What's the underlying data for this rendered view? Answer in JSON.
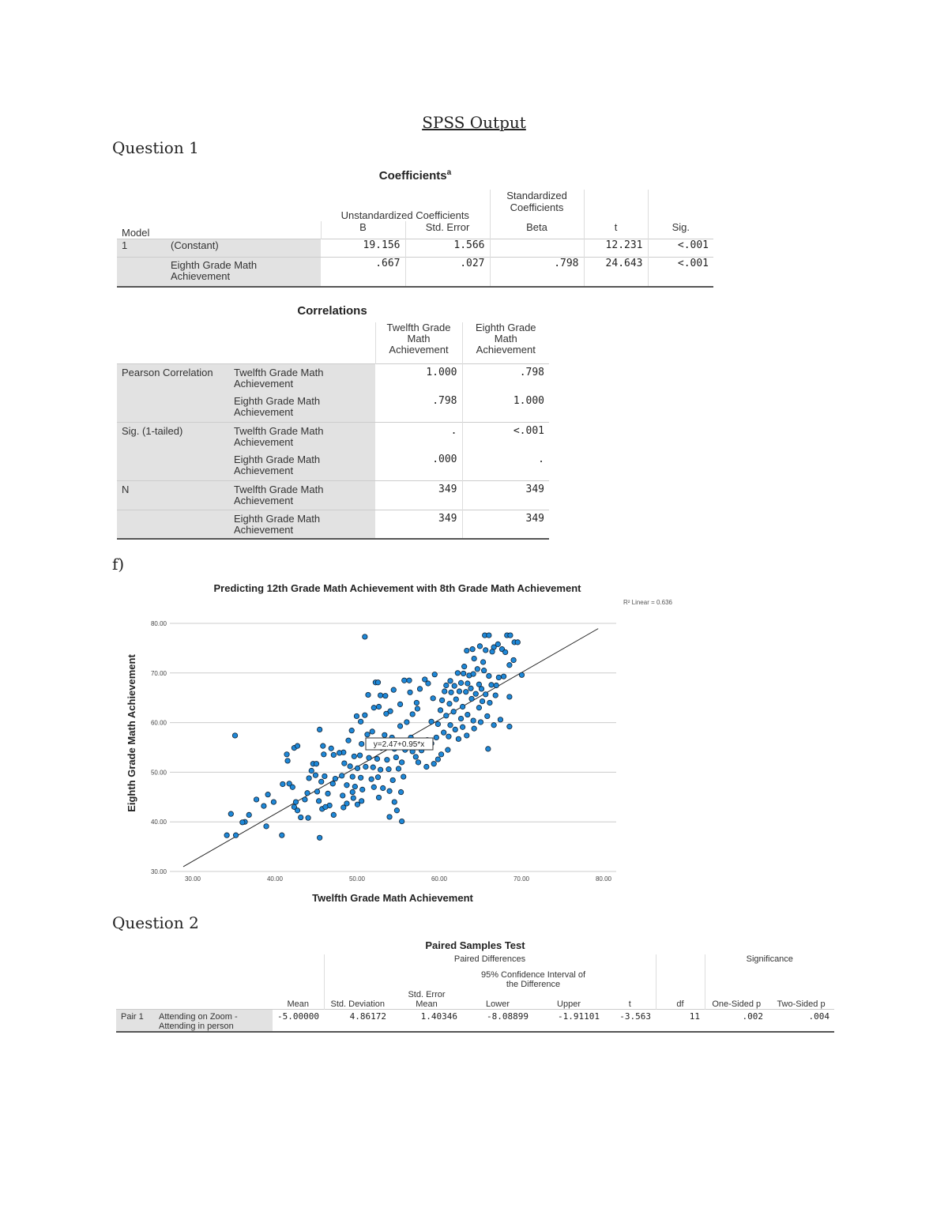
{
  "title": "SPSS Output",
  "question1": "Question 1",
  "question2": "Question 2",
  "part_f": "f)",
  "coefficients": {
    "title": "Coefficients",
    "title_sup": "a",
    "headers": {
      "unstandardized": "Unstandardized Coefficients",
      "standardized": "Standardized Coefficients",
      "model": "Model",
      "b": "B",
      "std_error": "Std. Error",
      "beta": "Beta",
      "t": "t",
      "sig": "Sig."
    },
    "rows": [
      {
        "model": "1",
        "label": "(Constant)",
        "b": "19.156",
        "se": "1.566",
        "beta": "",
        "t": "12.231",
        "sig": "<.001"
      },
      {
        "model": "",
        "label": "Eighth Grade Math Achievement",
        "b": ".667",
        "se": ".027",
        "beta": ".798",
        "t": "24.643",
        "sig": "<.001"
      }
    ]
  },
  "correlations": {
    "title": "Correlations",
    "col_headers": [
      "Twelfth Grade Math Achievement",
      "Eighth Grade Math Achievement"
    ],
    "rows": [
      {
        "group": "Pearson Correlation",
        "label": "Twelfth Grade Math Achievement",
        "v1": "1.000",
        "v2": ".798"
      },
      {
        "group": "",
        "label": "Eighth Grade Math Achievement",
        "v1": ".798",
        "v2": "1.000"
      },
      {
        "group": "Sig. (1-tailed)",
        "label": "Twelfth Grade Math Achievement",
        "v1": ".",
        "v2": "<.001"
      },
      {
        "group": "",
        "label": "Eighth Grade Math Achievement",
        "v1": ".000",
        "v2": "."
      },
      {
        "group": "N",
        "label": "Twelfth Grade Math Achievement",
        "v1": "349",
        "v2": "349"
      },
      {
        "group": "",
        "label": "Eighth Grade Math Achievement",
        "v1": "349",
        "v2": "349"
      }
    ]
  },
  "chart_data": {
    "type": "scatter",
    "title": "Predicting 12th Grade Math Achievement with 8th Grade Math Achievement",
    "xlabel": "Twelfth Grade Math Achievement",
    "ylabel": "Eighth Grade Math Achievement",
    "xlim": [
      30,
      80
    ],
    "ylim": [
      30,
      80
    ],
    "xticks": [
      "30.00",
      "40.00",
      "50.00",
      "60.00",
      "70.00",
      "80.00"
    ],
    "yticks": [
      "30.00",
      "40.00",
      "50.00",
      "60.00",
      "70.00",
      "80.00"
    ],
    "grid": "horizontal",
    "fit_line": {
      "intercept": 2.47,
      "slope": 0.95,
      "label": "y=2.47+0.95*x"
    },
    "r2_label": "R² Linear = 0.636",
    "point_color": "#1e88d8",
    "points": [
      [
        66.7,
        77.6
      ],
      [
        67.2,
        77.6
      ],
      [
        69.4,
        77.6
      ],
      [
        69.8,
        77.6
      ],
      [
        70.3,
        76.2
      ],
      [
        70.7,
        76.2
      ],
      [
        68.3,
        75.8
      ],
      [
        67.8,
        75.2
      ],
      [
        66.1,
        75.4
      ],
      [
        64.5,
        74.5
      ],
      [
        65.2,
        74.8
      ],
      [
        66.8,
        74.6
      ],
      [
        67.6,
        74.3
      ],
      [
        68.8,
        74.8
      ],
      [
        69.2,
        74.2
      ],
      [
        65.4,
        72.9
      ],
      [
        66.5,
        72.2
      ],
      [
        70.2,
        72.6
      ],
      [
        69.7,
        71.6
      ],
      [
        64.2,
        71.3
      ],
      [
        65.8,
        70.8
      ],
      [
        66.6,
        70.5
      ],
      [
        63.4,
        70.0
      ],
      [
        64.1,
        69.9
      ],
      [
        64.8,
        69.5
      ],
      [
        65.3,
        69.8
      ],
      [
        67.2,
        69.4
      ],
      [
        68.4,
        69.1
      ],
      [
        69.0,
        69.3
      ],
      [
        71.2,
        69.6
      ],
      [
        60.6,
        69.7
      ],
      [
        62.5,
        68.4
      ],
      [
        63.8,
        68.0
      ],
      [
        64.6,
        67.9
      ],
      [
        66.0,
        67.7
      ],
      [
        67.5,
        67.6
      ],
      [
        59.4,
        68.7
      ],
      [
        59.8,
        67.9
      ],
      [
        62.0,
        67.5
      ],
      [
        63.0,
        67.4
      ],
      [
        65.0,
        66.9
      ],
      [
        66.3,
        66.8
      ],
      [
        68.1,
        67.5
      ],
      [
        61.8,
        66.3
      ],
      [
        62.6,
        66.1
      ],
      [
        63.6,
        66.3
      ],
      [
        64.4,
        66.2
      ],
      [
        65.6,
        65.8
      ],
      [
        66.8,
        65.7
      ],
      [
        68.0,
        65.5
      ],
      [
        69.7,
        65.2
      ],
      [
        60.4,
        64.9
      ],
      [
        61.5,
        64.5
      ],
      [
        63.2,
        64.7
      ],
      [
        65.1,
        64.8
      ],
      [
        66.4,
        64.3
      ],
      [
        67.3,
        64.0
      ],
      [
        62.4,
        63.8
      ],
      [
        64.0,
        63.2
      ],
      [
        66.0,
        63.0
      ],
      [
        61.3,
        62.5
      ],
      [
        62.9,
        62.2
      ],
      [
        64.6,
        61.6
      ],
      [
        67.0,
        61.3
      ],
      [
        68.6,
        60.6
      ],
      [
        69.7,
        59.2
      ],
      [
        62.0,
        61.4
      ],
      [
        63.8,
        60.8
      ],
      [
        65.3,
        60.4
      ],
      [
        66.2,
        60.1
      ],
      [
        67.8,
        59.5
      ],
      [
        60.2,
        60.2
      ],
      [
        61.0,
        59.7
      ],
      [
        62.5,
        59.5
      ],
      [
        64.0,
        59.1
      ],
      [
        65.4,
        58.8
      ],
      [
        63.1,
        58.6
      ],
      [
        61.7,
        58.0
      ],
      [
        64.5,
        57.4
      ],
      [
        62.3,
        57.2
      ],
      [
        60.8,
        57.0
      ],
      [
        63.5,
        56.7
      ],
      [
        67.1,
        54.7
      ],
      [
        62.2,
        54.5
      ],
      [
        61.4,
        53.6
      ],
      [
        61.0,
        52.6
      ],
      [
        60.5,
        51.7
      ],
      [
        59.6,
        51.1
      ],
      [
        58.6,
        52.0
      ],
      [
        57.9,
        54.2
      ],
      [
        59.0,
        54.4
      ],
      [
        58.3,
        53.1
      ],
      [
        60.2,
        55.8
      ],
      [
        59.7,
        56.5
      ],
      [
        57.7,
        57.0
      ],
      [
        56.4,
        59.3
      ],
      [
        57.2,
        60.1
      ],
      [
        57.9,
        61.7
      ],
      [
        58.5,
        62.8
      ],
      [
        58.4,
        64.0
      ],
      [
        57.6,
        66.1
      ],
      [
        58.8,
        66.8
      ],
      [
        56.9,
        68.5
      ],
      [
        57.5,
        68.5
      ],
      [
        55.6,
        66.6
      ],
      [
        56.4,
        63.7
      ],
      [
        55.2,
        62.3
      ],
      [
        54.7,
        61.8
      ],
      [
        53.4,
        68.1
      ],
      [
        53.7,
        68.1
      ],
      [
        54.0,
        65.5
      ],
      [
        54.6,
        65.4
      ],
      [
        52.5,
        65.6
      ],
      [
        53.2,
        63.0
      ],
      [
        53.8,
        63.2
      ],
      [
        50.5,
        58.4
      ],
      [
        51.1,
        61.3
      ],
      [
        52.1,
        61.5
      ],
      [
        51.6,
        60.2
      ],
      [
        52.4,
        57.6
      ],
      [
        53.0,
        58.2
      ],
      [
        54.5,
        57.5
      ],
      [
        55.4,
        57.0
      ],
      [
        56.2,
        56.2
      ],
      [
        56.9,
        55.6
      ],
      [
        50.1,
        56.4
      ],
      [
        51.7,
        55.7
      ],
      [
        53.3,
        55.0
      ],
      [
        54.1,
        54.9
      ],
      [
        55.7,
        54.7
      ],
      [
        57.0,
        54.5
      ],
      [
        49.5,
        54.0
      ],
      [
        48.0,
        54.8
      ],
      [
        49.0,
        53.9
      ],
      [
        50.8,
        53.2
      ],
      [
        51.5,
        53.4
      ],
      [
        52.6,
        52.9
      ],
      [
        53.6,
        52.7
      ],
      [
        54.8,
        52.5
      ],
      [
        55.9,
        53.0
      ],
      [
        56.6,
        52.0
      ],
      [
        48.3,
        53.5
      ],
      [
        47.0,
        55.3
      ],
      [
        49.6,
        51.8
      ],
      [
        50.3,
        51.2
      ],
      [
        51.2,
        50.8
      ],
      [
        52.2,
        51.1
      ],
      [
        53.1,
        51.0
      ],
      [
        54.0,
        50.5
      ],
      [
        55.0,
        50.6
      ],
      [
        56.2,
        50.7
      ],
      [
        45.6,
        50.3
      ],
      [
        47.2,
        49.2
      ],
      [
        48.5,
        48.7
      ],
      [
        49.3,
        49.3
      ],
      [
        50.6,
        49.1
      ],
      [
        51.6,
        48.9
      ],
      [
        52.9,
        48.6
      ],
      [
        53.7,
        49.0
      ],
      [
        55.5,
        48.4
      ],
      [
        56.8,
        49.1
      ],
      [
        45.3,
        48.8
      ],
      [
        46.8,
        48.1
      ],
      [
        48.2,
        47.7
      ],
      [
        49.9,
        47.4
      ],
      [
        50.9,
        47.1
      ],
      [
        51.8,
        46.5
      ],
      [
        53.2,
        47.0
      ],
      [
        54.3,
        46.8
      ],
      [
        55.1,
        46.2
      ],
      [
        56.5,
        46.0
      ],
      [
        45.1,
        45.8
      ],
      [
        46.3,
        46.1
      ],
      [
        47.6,
        45.7
      ],
      [
        49.4,
        45.3
      ],
      [
        50.7,
        44.8
      ],
      [
        51.7,
        44.2
      ],
      [
        53.8,
        44.9
      ],
      [
        55.7,
        44.0
      ],
      [
        46.5,
        44.2
      ],
      [
        47.8,
        43.3
      ],
      [
        49.5,
        42.9
      ],
      [
        51.2,
        43.5
      ],
      [
        46.9,
        42.6
      ],
      [
        47.3,
        43.0
      ],
      [
        36.3,
        57.4
      ],
      [
        52.1,
        77.3
      ],
      [
        35.8,
        41.6
      ],
      [
        35.3,
        37.3
      ],
      [
        36.4,
        37.3
      ],
      [
        37.5,
        40.0
      ],
      [
        37.2,
        39.9
      ],
      [
        38.0,
        41.4
      ],
      [
        38.9,
        44.5
      ],
      [
        40.3,
        45.5
      ],
      [
        39.8,
        43.2
      ],
      [
        40.1,
        39.1
      ],
      [
        41.0,
        44.0
      ],
      [
        42.0,
        37.3
      ],
      [
        42.1,
        47.6
      ],
      [
        42.6,
        53.6
      ],
      [
        42.7,
        52.3
      ],
      [
        42.9,
        47.7
      ],
      [
        43.3,
        47.0
      ],
      [
        43.5,
        43.0
      ],
      [
        43.5,
        54.9
      ],
      [
        43.9,
        55.3
      ],
      [
        43.9,
        42.3
      ],
      [
        43.7,
        44.0
      ],
      [
        44.3,
        40.9
      ],
      [
        44.8,
        44.5
      ],
      [
        45.2,
        40.8
      ],
      [
        45.8,
        51.7
      ],
      [
        46.2,
        51.7
      ],
      [
        46.1,
        49.4
      ],
      [
        46.6,
        58.6
      ],
      [
        47.1,
        53.6
      ],
      [
        46.6,
        36.8
      ],
      [
        48.3,
        41.4
      ],
      [
        49.9,
        43.7
      ],
      [
        55.1,
        41.0
      ],
      [
        56.0,
        42.3
      ],
      [
        56.6,
        40.1
      ],
      [
        50.6,
        46.0
      ]
    ]
  },
  "paired": {
    "title": "Paired Samples Test",
    "headers": {
      "paired_differences": "Paired Differences",
      "significance": "Significance",
      "ci": "95% Confidence Interval of the Difference",
      "mean": "Mean",
      "std_dev": "Std. Deviation",
      "sem": "Std. Error Mean",
      "lower": "Lower",
      "upper": "Upper",
      "t": "t",
      "df": "df",
      "one_sided": "One-Sided p",
      "two_sided": "Two-Sided p"
    },
    "row": {
      "pair": "Pair 1",
      "label": "Attending on Zoom - Attending in person",
      "mean": "-5.00000",
      "sd": "4.86172",
      "sem": "1.40346",
      "lower": "-8.08899",
      "upper": "-1.91101",
      "t": "-3.563",
      "df": "11",
      "one": ".002",
      "two": ".004"
    }
  }
}
